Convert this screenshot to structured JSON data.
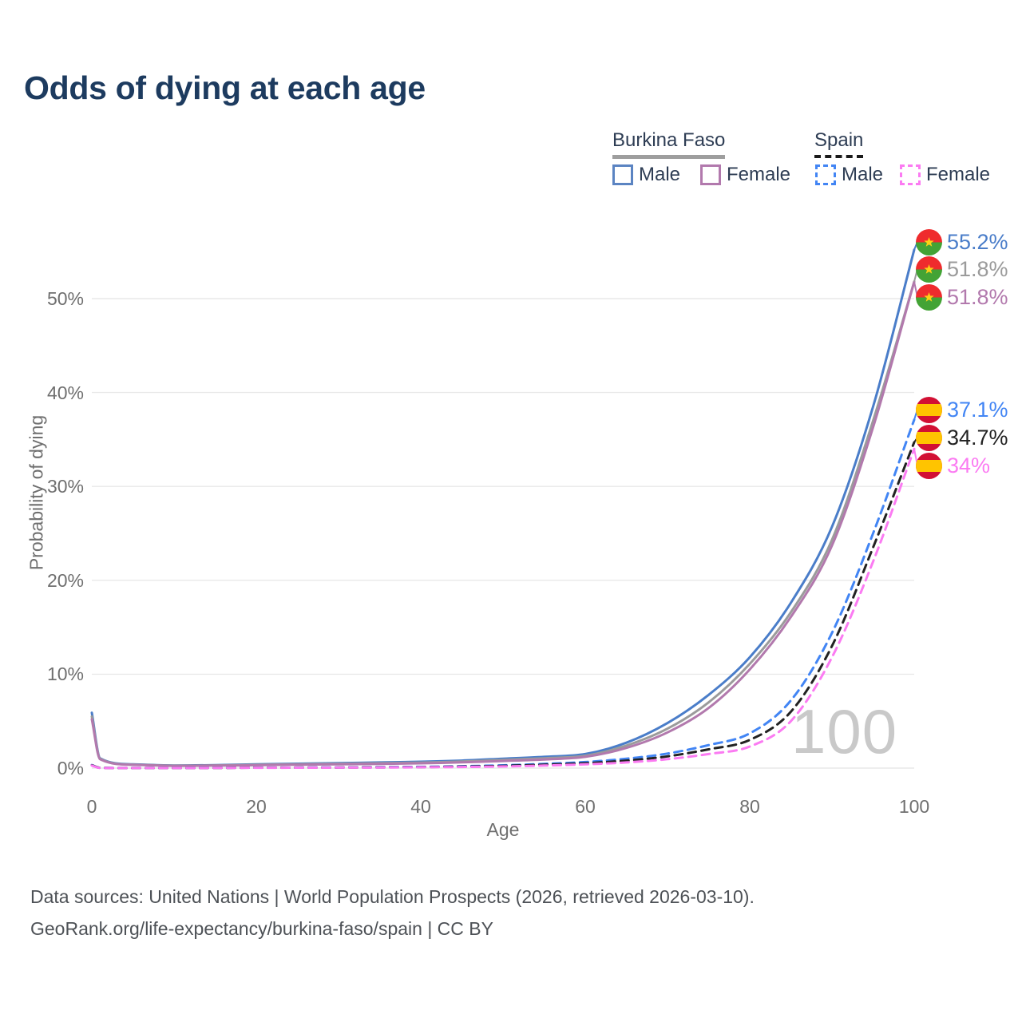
{
  "title": "Odds of dying at each age",
  "watermark": "100",
  "colors": {
    "title": "#1d3b5f",
    "axis_text": "#6f6f6f",
    "grid": "#e9e9e9",
    "watermark": "#c9c9c9",
    "footer_text": "#4d5156",
    "legend_text": "#2e3d54",
    "burkina_faso_underline": "#9e9e9e",
    "spain_underline": "#1a1a1a"
  },
  "legend": {
    "burkina_faso": {
      "label": "Burkina Faso",
      "male": "Male",
      "female": "Female",
      "male_color": "#5b84c2",
      "female_color": "#b279ad",
      "line_style": "solid"
    },
    "spain": {
      "label": "Spain",
      "male": "Male",
      "female": "Female",
      "male_color": "#4285f4",
      "female_color": "#fb7bf2",
      "line_style": "dashed"
    }
  },
  "flags": {
    "burkina_faso": {
      "top": "#ef2b2d",
      "bottom": "#43a335",
      "star": "#fcd116"
    },
    "spain": {
      "red": "#d21034",
      "yellow": "#ffc400"
    }
  },
  "footer": {
    "line1": "Data sources: United Nations | World Population Prospects (2026, retrieved 2026-03-10).",
    "line2": "GeoRank.org/life-expectancy/burkina-faso/spain | CC BY"
  },
  "chart_data": {
    "type": "line",
    "title": "Odds of dying at each age",
    "xlabel": "Age",
    "ylabel": "Probability of dying",
    "x_ticks": [
      0,
      20,
      40,
      60,
      80,
      100
    ],
    "y_tick_labels": [
      "0%",
      "10%",
      "20%",
      "30%",
      "40%",
      "50%"
    ],
    "xlim": [
      0,
      100
    ],
    "ylim": [
      0,
      57
    ],
    "grid": "horizontal",
    "legend_position": "top-right",
    "ages": [
      0,
      1,
      5,
      10,
      15,
      20,
      25,
      30,
      35,
      40,
      45,
      50,
      55,
      60,
      65,
      70,
      75,
      80,
      85,
      90,
      95,
      100
    ],
    "series": [
      {
        "name": "Burkina Faso Male",
        "country": "Burkina Faso",
        "sex": "Male",
        "style": "solid",
        "color": "#4a7dc9",
        "flag": "burkina_faso",
        "end_label": "55.2%",
        "label_color": "#4a7dc9",
        "values": [
          5.9,
          1.05,
          0.4,
          0.28,
          0.32,
          0.4,
          0.47,
          0.53,
          0.6,
          0.68,
          0.8,
          1.0,
          1.2,
          1.5,
          2.7,
          4.8,
          7.8,
          11.8,
          17.6,
          25.7,
          38.5,
          55.2
        ]
      },
      {
        "name": "Burkina Faso Both sexes",
        "country": "Burkina Faso",
        "sex": "Both",
        "style": "solid",
        "color": "#9b9b9b",
        "flag": "burkina_faso",
        "end_label": "51.8%",
        "label_color": "#9b9b9b",
        "values": [
          5.5,
          1.0,
          0.37,
          0.26,
          0.29,
          0.35,
          0.41,
          0.46,
          0.52,
          0.59,
          0.7,
          0.87,
          1.05,
          1.32,
          2.4,
          4.2,
          7.0,
          11.1,
          16.6,
          24.3,
          37.0,
          51.8
        ]
      },
      {
        "name": "Burkina Faso Female",
        "country": "Burkina Faso",
        "sex": "Female",
        "style": "solid",
        "color": "#b279ad",
        "flag": "burkina_faso",
        "end_label": "51.8%",
        "label_color": "#b279ad",
        "values": [
          5.2,
          0.95,
          0.35,
          0.24,
          0.26,
          0.31,
          0.36,
          0.4,
          0.45,
          0.51,
          0.61,
          0.76,
          0.92,
          1.2,
          2.15,
          3.8,
          6.4,
          10.5,
          16.1,
          23.7,
          36.3,
          51.8
        ]
      },
      {
        "name": "Spain Male",
        "country": "Spain",
        "sex": "Male",
        "style": "dashed",
        "color": "#4285f4",
        "flag": "spain",
        "end_label": "37.1%",
        "label_color": "#4285f4",
        "values": [
          0.32,
          0.03,
          0.01,
          0.01,
          0.03,
          0.05,
          0.06,
          0.08,
          0.1,
          0.14,
          0.2,
          0.3,
          0.45,
          0.65,
          1.0,
          1.55,
          2.45,
          3.7,
          7.2,
          14.4,
          25.0,
          37.1
        ]
      },
      {
        "name": "Spain Both sexes",
        "country": "Spain",
        "sex": "Both",
        "style": "dashed",
        "color": "#222222",
        "flag": "spain",
        "end_label": "34.7%",
        "label_color": "#222222",
        "values": [
          0.3,
          0.03,
          0.01,
          0.01,
          0.02,
          0.04,
          0.05,
          0.06,
          0.08,
          0.11,
          0.16,
          0.24,
          0.36,
          0.52,
          0.8,
          1.25,
          2.0,
          3.0,
          6.0,
          13.0,
          23.5,
          34.7
        ]
      },
      {
        "name": "Spain Female",
        "country": "Spain",
        "sex": "Female",
        "style": "dashed",
        "color": "#fb7bf2",
        "flag": "spain",
        "end_label": "34%",
        "label_color": "#fb7bf2",
        "values": [
          0.27,
          0.02,
          0.01,
          0.01,
          0.02,
          0.03,
          0.04,
          0.05,
          0.06,
          0.09,
          0.12,
          0.18,
          0.27,
          0.4,
          0.6,
          0.95,
          1.5,
          2.3,
          5.0,
          11.8,
          22.0,
          34.0
        ]
      }
    ]
  }
}
